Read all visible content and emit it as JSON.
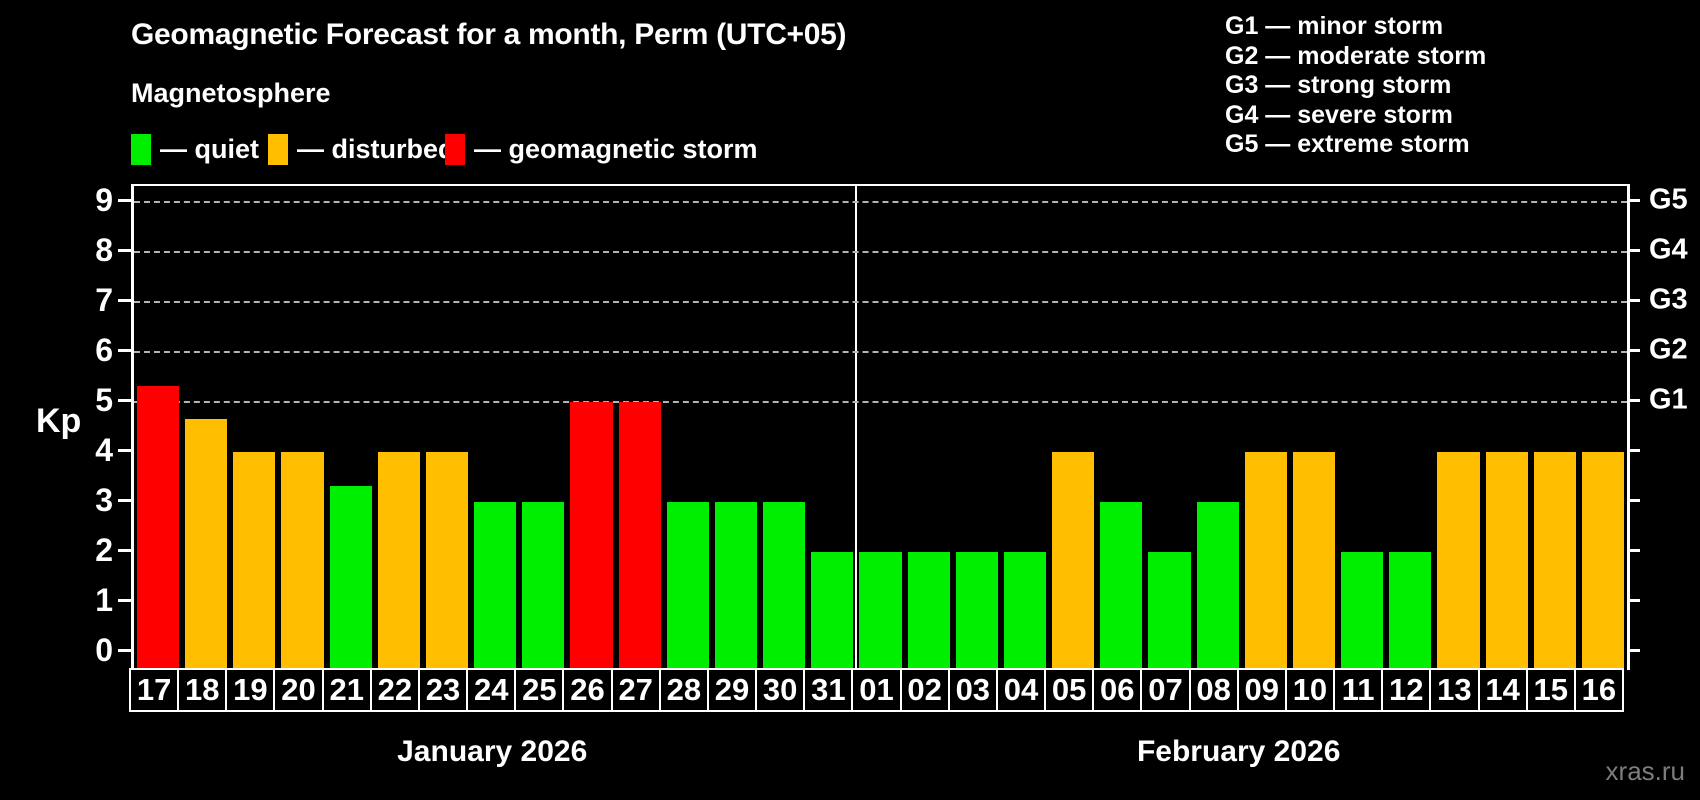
{
  "title": "Geomagnetic Forecast for a month, Perm (UTC+05)",
  "subtitle": "Magnetosphere",
  "kp_axis_title": "Kp",
  "watermark": "xras.ru",
  "legend": [
    {
      "name": "quiet",
      "label": "— quiet",
      "color": "#00ee00"
    },
    {
      "name": "disturbed",
      "label": "— disturbed",
      "color": "#ffbf00"
    },
    {
      "name": "storm",
      "label": "— geomagnetic storm",
      "color": "#ff0000"
    }
  ],
  "g_legend": [
    "G1 — minor storm",
    "G2 — moderate storm",
    "G3 — strong storm",
    "G4 — severe storm",
    "G5 — extreme storm"
  ],
  "chart_data": {
    "type": "bar",
    "title": "Geomagnetic Forecast for a month, Perm (UTC+05)",
    "ylabel": "Kp",
    "ylim": [
      0,
      9
    ],
    "yticks": [
      0,
      1,
      2,
      3,
      4,
      5,
      6,
      7,
      8,
      9
    ],
    "grid_levels_kp": [
      5,
      6,
      7,
      8,
      9
    ],
    "grid": "dashed horizontal lines at Kp 5-9 only",
    "legend_position": "top",
    "right_axis": [
      {
        "kp": 5,
        "label": "G1"
      },
      {
        "kp": 6,
        "label": "G2"
      },
      {
        "kp": 7,
        "label": "G3"
      },
      {
        "kp": 8,
        "label": "G4"
      },
      {
        "kp": 9,
        "label": "G5"
      }
    ],
    "status_colors": {
      "quiet": "#00ee00",
      "disturbed": "#ffbf00",
      "storm": "#ff0000"
    },
    "months": [
      {
        "label": "January 2026",
        "days": [
          {
            "day": "17",
            "kp": 5.33,
            "status": "storm"
          },
          {
            "day": "18",
            "kp": 4.67,
            "status": "disturbed"
          },
          {
            "day": "19",
            "kp": 4,
            "status": "disturbed"
          },
          {
            "day": "20",
            "kp": 4,
            "status": "disturbed"
          },
          {
            "day": "21",
            "kp": 3.33,
            "status": "quiet"
          },
          {
            "day": "22",
            "kp": 4,
            "status": "disturbed"
          },
          {
            "day": "23",
            "kp": 4,
            "status": "disturbed"
          },
          {
            "day": "24",
            "kp": 3,
            "status": "quiet"
          },
          {
            "day": "25",
            "kp": 3,
            "status": "quiet"
          },
          {
            "day": "26",
            "kp": 5,
            "status": "storm"
          },
          {
            "day": "27",
            "kp": 5,
            "status": "storm"
          },
          {
            "day": "28",
            "kp": 3,
            "status": "quiet"
          },
          {
            "day": "29",
            "kp": 3,
            "status": "quiet"
          },
          {
            "day": "30",
            "kp": 3,
            "status": "quiet"
          },
          {
            "day": "31",
            "kp": 2,
            "status": "quiet"
          }
        ]
      },
      {
        "label": "February 2026",
        "days": [
          {
            "day": "01",
            "kp": 2,
            "status": "quiet"
          },
          {
            "day": "02",
            "kp": 2,
            "status": "quiet"
          },
          {
            "day": "03",
            "kp": 2,
            "status": "quiet"
          },
          {
            "day": "04",
            "kp": 2,
            "status": "quiet"
          },
          {
            "day": "05",
            "kp": 4,
            "status": "disturbed"
          },
          {
            "day": "06",
            "kp": 3,
            "status": "quiet"
          },
          {
            "day": "07",
            "kp": 2,
            "status": "quiet"
          },
          {
            "day": "08",
            "kp": 3,
            "status": "quiet"
          },
          {
            "day": "09",
            "kp": 4,
            "status": "disturbed"
          },
          {
            "day": "10",
            "kp": 4,
            "status": "disturbed"
          },
          {
            "day": "11",
            "kp": 2,
            "status": "quiet"
          },
          {
            "day": "12",
            "kp": 2,
            "status": "quiet"
          },
          {
            "day": "13",
            "kp": 4,
            "status": "disturbed"
          },
          {
            "day": "14",
            "kp": 4,
            "status": "disturbed"
          },
          {
            "day": "15",
            "kp": 4,
            "status": "disturbed"
          },
          {
            "day": "16",
            "kp": 4,
            "status": "disturbed"
          }
        ]
      }
    ]
  }
}
